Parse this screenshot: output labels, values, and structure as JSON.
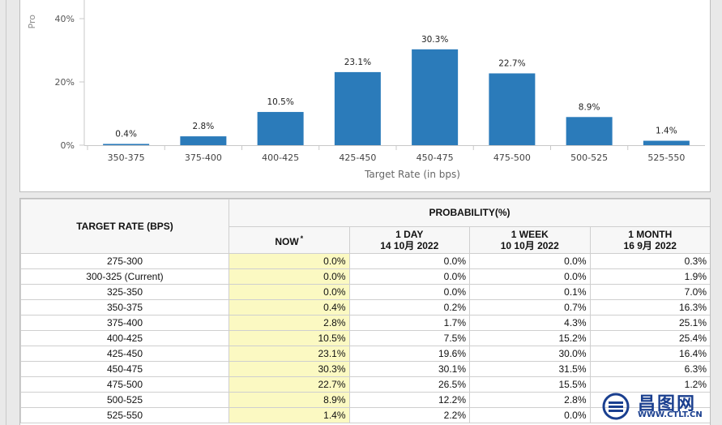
{
  "chart_data": {
    "type": "bar",
    "categories": [
      "350-375",
      "375-400",
      "400-425",
      "425-450",
      "450-475",
      "475-500",
      "500-525",
      "525-550"
    ],
    "values": [
      0.4,
      2.8,
      10.5,
      23.1,
      30.3,
      22.7,
      8.9,
      1.4
    ],
    "data_labels": [
      "0.4%",
      "2.8%",
      "10.5%",
      "23.1%",
      "30.3%",
      "22.7%",
      "8.9%",
      "1.4%"
    ],
    "y_ticks": [
      "0%",
      "20%",
      "40%"
    ],
    "y_tick_values": [
      0,
      20,
      40
    ],
    "xlabel": "Target Rate (in bps)",
    "ylabel": "Pro",
    "ylim": [
      0,
      40
    ],
    "bar_color": "#2b7bba",
    "grid": false
  },
  "table": {
    "header_target": "TARGET RATE (BPS)",
    "header_probability": "PROBABILITY(%)",
    "columns": [
      {
        "line1": "NOW",
        "sup": "*",
        "line2": ""
      },
      {
        "line1": "1 DAY",
        "line2": "14 10月 2022"
      },
      {
        "line1": "1 WEEK",
        "line2": "10 10月 2022"
      },
      {
        "line1": "1 MONTH",
        "line2": "16 9月 2022"
      }
    ],
    "rows": [
      {
        "rate": "275-300",
        "now": "0.0%",
        "day": "0.0%",
        "week": "0.0%",
        "month": "0.3%"
      },
      {
        "rate": "300-325 (Current)",
        "now": "0.0%",
        "day": "0.0%",
        "week": "0.0%",
        "month": "1.9%"
      },
      {
        "rate": "325-350",
        "now": "0.0%",
        "day": "0.0%",
        "week": "0.1%",
        "month": "7.0%"
      },
      {
        "rate": "350-375",
        "now": "0.4%",
        "day": "0.2%",
        "week": "0.7%",
        "month": "16.3%"
      },
      {
        "rate": "375-400",
        "now": "2.8%",
        "day": "1.7%",
        "week": "4.3%",
        "month": "25.1%"
      },
      {
        "rate": "400-425",
        "now": "10.5%",
        "day": "7.5%",
        "week": "15.2%",
        "month": "25.4%"
      },
      {
        "rate": "425-450",
        "now": "23.1%",
        "day": "19.6%",
        "week": "30.0%",
        "month": "16.4%"
      },
      {
        "rate": "450-475",
        "now": "30.3%",
        "day": "30.1%",
        "week": "31.5%",
        "month": "6.3%"
      },
      {
        "rate": "475-500",
        "now": "22.7%",
        "day": "26.5%",
        "week": "15.5%",
        "month": "1.2%"
      },
      {
        "rate": "500-525",
        "now": "8.9%",
        "day": "12.2%",
        "week": "2.8%",
        "month": ""
      },
      {
        "rate": "525-550",
        "now": "1.4%",
        "day": "2.2%",
        "week": "0.0%",
        "month": ""
      }
    ]
  },
  "watermark": {
    "title": "昌图网",
    "url": "WWW.CTLT.CN",
    "color": "#1a3f8f"
  }
}
